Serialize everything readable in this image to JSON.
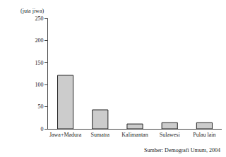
{
  "chart_data": {
    "type": "bar",
    "ylabel": "(juta jiwa)",
    "categories": [
      "Jawa+Madura",
      "Sumatra",
      "Kalimantan",
      "Sulawesi",
      "Pulau lain"
    ],
    "values": [
      121,
      43,
      11,
      14,
      14
    ],
    "color": "#cccccc",
    "ylim": [
      0,
      250
    ],
    "yticks": [
      0,
      50,
      100,
      150,
      200,
      250
    ],
    "grid": false,
    "annotations": [
      "Sumber: Demografi Umum, 2004"
    ]
  }
}
